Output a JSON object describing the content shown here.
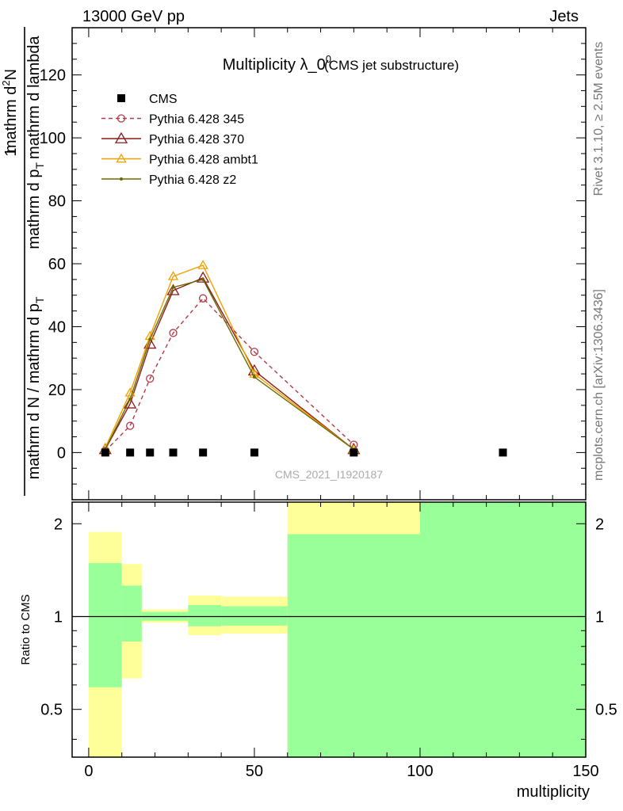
{
  "header": {
    "left": "13000 GeV pp",
    "right": "Jets"
  },
  "side_labels": {
    "rivet": "Rivet 3.1.10, ≥ 2.5M events",
    "mcplots": "mcplots.cern.ch [arXiv:1306.3436]"
  },
  "chart_data": [
    {
      "type": "line",
      "title": "Multiplicity λ_0",
      "title_sup": "0",
      "subtitle": "(CMS jet substructure)",
      "analysis_tag": "CMS_2021_I1920187",
      "ylabel": {
        "num_1": "1",
        "den_1": "mathrm d N / mathrm d p",
        "den_sub": "T",
        "num_2": "mathrm d",
        "num_2_sup": "2",
        "num_2_rest": "N",
        "den_2a": "mathrm d p",
        "den_2a_sub": "T",
        "den_2b": "mathrm d lambda"
      },
      "xlim": [
        -5,
        150
      ],
      "ylim": [
        -15,
        135
      ],
      "y_ticks": [
        0,
        20,
        40,
        60,
        80,
        100,
        120
      ],
      "legend_position": "top-left",
      "series": [
        {
          "name": "CMS",
          "color": "#000000",
          "marker": "square",
          "line": "none",
          "x": [
            5,
            12.5,
            18.5,
            25.5,
            34.5,
            50,
            80,
            125
          ],
          "y": [
            0,
            0,
            0,
            0,
            0,
            0,
            0,
            0
          ]
        },
        {
          "name": "Pythia 6.428 345",
          "color": "#b03a48",
          "marker": "circle",
          "line": "dashed",
          "x": [
            5,
            12.5,
            18.5,
            25.5,
            34.5,
            50,
            80
          ],
          "y": [
            0.5,
            8.5,
            23.5,
            38,
            49,
            32,
            2.5
          ]
        },
        {
          "name": "Pythia 6.428 370",
          "color": "#8b1a1a",
          "marker": "triangle",
          "line": "solid",
          "x": [
            5,
            12.5,
            18.5,
            25.5,
            34.5,
            50,
            80
          ],
          "y": [
            1,
            15.5,
            34.5,
            51.5,
            55.5,
            26,
            1
          ]
        },
        {
          "name": "Pythia 6.428 ambt1",
          "color": "#f0a000",
          "marker": "triangle-small",
          "line": "solid",
          "x": [
            5,
            12.5,
            18.5,
            25.5,
            34.5,
            50,
            80
          ],
          "y": [
            1.5,
            19,
            37,
            56,
            59.5,
            25,
            1
          ]
        },
        {
          "name": "Pythia 6.428 z2",
          "color": "#6b6b00",
          "marker": "dot",
          "line": "solid",
          "x": [
            5,
            12.5,
            18.5,
            25.5,
            34.5,
            50,
            80
          ],
          "y": [
            1,
            17,
            36,
            52.5,
            55,
            24,
            1
          ]
        }
      ]
    },
    {
      "type": "area",
      "ylabel": "Ratio to CMS",
      "xlabel": "multiplicity",
      "xlim": [
        -5,
        150
      ],
      "ylim": [
        0.35,
        2.35
      ],
      "y_scale": "log",
      "x_ticks": [
        0,
        50,
        100,
        150
      ],
      "y_ticks": [
        0.5,
        1,
        2
      ],
      "reference_line": 1,
      "bands": [
        {
          "x0": 0,
          "x1": 10,
          "yellow": [
            0.3,
            1.88
          ],
          "green": [
            0.59,
            1.49
          ]
        },
        {
          "x0": 10,
          "x1": 16,
          "yellow": [
            0.63,
            1.48
          ],
          "green": [
            0.83,
            1.26
          ]
        },
        {
          "x0": 16,
          "x1": 30,
          "yellow": [
            0.955,
            1.055
          ],
          "green": [
            0.97,
            1.035
          ]
        },
        {
          "x0": 30,
          "x1": 40,
          "yellow": [
            0.87,
            1.17
          ],
          "green": [
            0.93,
            1.09
          ]
        },
        {
          "x0": 40,
          "x1": 60,
          "yellow": [
            0.88,
            1.16
          ],
          "green": [
            0.935,
            1.08
          ]
        },
        {
          "x0": 60,
          "x1": 100,
          "yellow": [
            0.3,
            3.0
          ],
          "green": [
            0.3,
            1.85
          ]
        },
        {
          "x0": 100,
          "x1": 150,
          "yellow": [
            0.3,
            3.0
          ],
          "green": [
            0.3,
            3.0
          ]
        }
      ]
    }
  ]
}
